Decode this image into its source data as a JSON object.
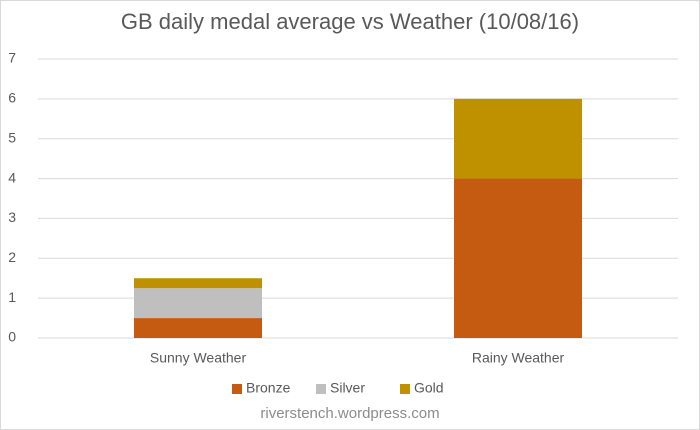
{
  "chart_data": {
    "type": "stacked_bar",
    "title": "GB daily medal average vs Weather (10/08/16)",
    "categories": [
      "Sunny Weather",
      "Rainy Weather"
    ],
    "series": [
      {
        "name": "Bronze",
        "color": "#c55a11",
        "values": [
          0.5,
          4
        ]
      },
      {
        "name": "Silver",
        "color": "#bfbfbf",
        "values": [
          0.75,
          0
        ]
      },
      {
        "name": "Gold",
        "color": "#bf9000",
        "values": [
          0.25,
          2
        ]
      }
    ],
    "ylim": [
      0,
      7
    ],
    "yticks": [
      0,
      1,
      2,
      3,
      4,
      5,
      6,
      7
    ],
    "grid": true,
    "legend": "bottom",
    "footer": "riverstench.wordpress.com"
  }
}
